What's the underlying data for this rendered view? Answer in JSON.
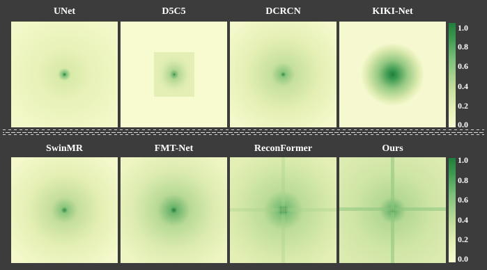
{
  "top_row": {
    "titles": [
      "UNet",
      "D5C5",
      "DCRCN",
      "KIKI-Net"
    ]
  },
  "bottom_row": {
    "titles": [
      "SwinMR",
      "FMT-Net",
      "ReconFormer",
      "Ours"
    ]
  },
  "colorbar": {
    "ticks": [
      "1.0",
      "0.8",
      "0.6",
      "0.4",
      "0.2",
      "0.0"
    ],
    "colors": {
      "high": "#1e7e3a",
      "low": "#f8fbd0"
    }
  },
  "panel_background": "#f6f9cf",
  "page_background": "#3c3c3c"
}
